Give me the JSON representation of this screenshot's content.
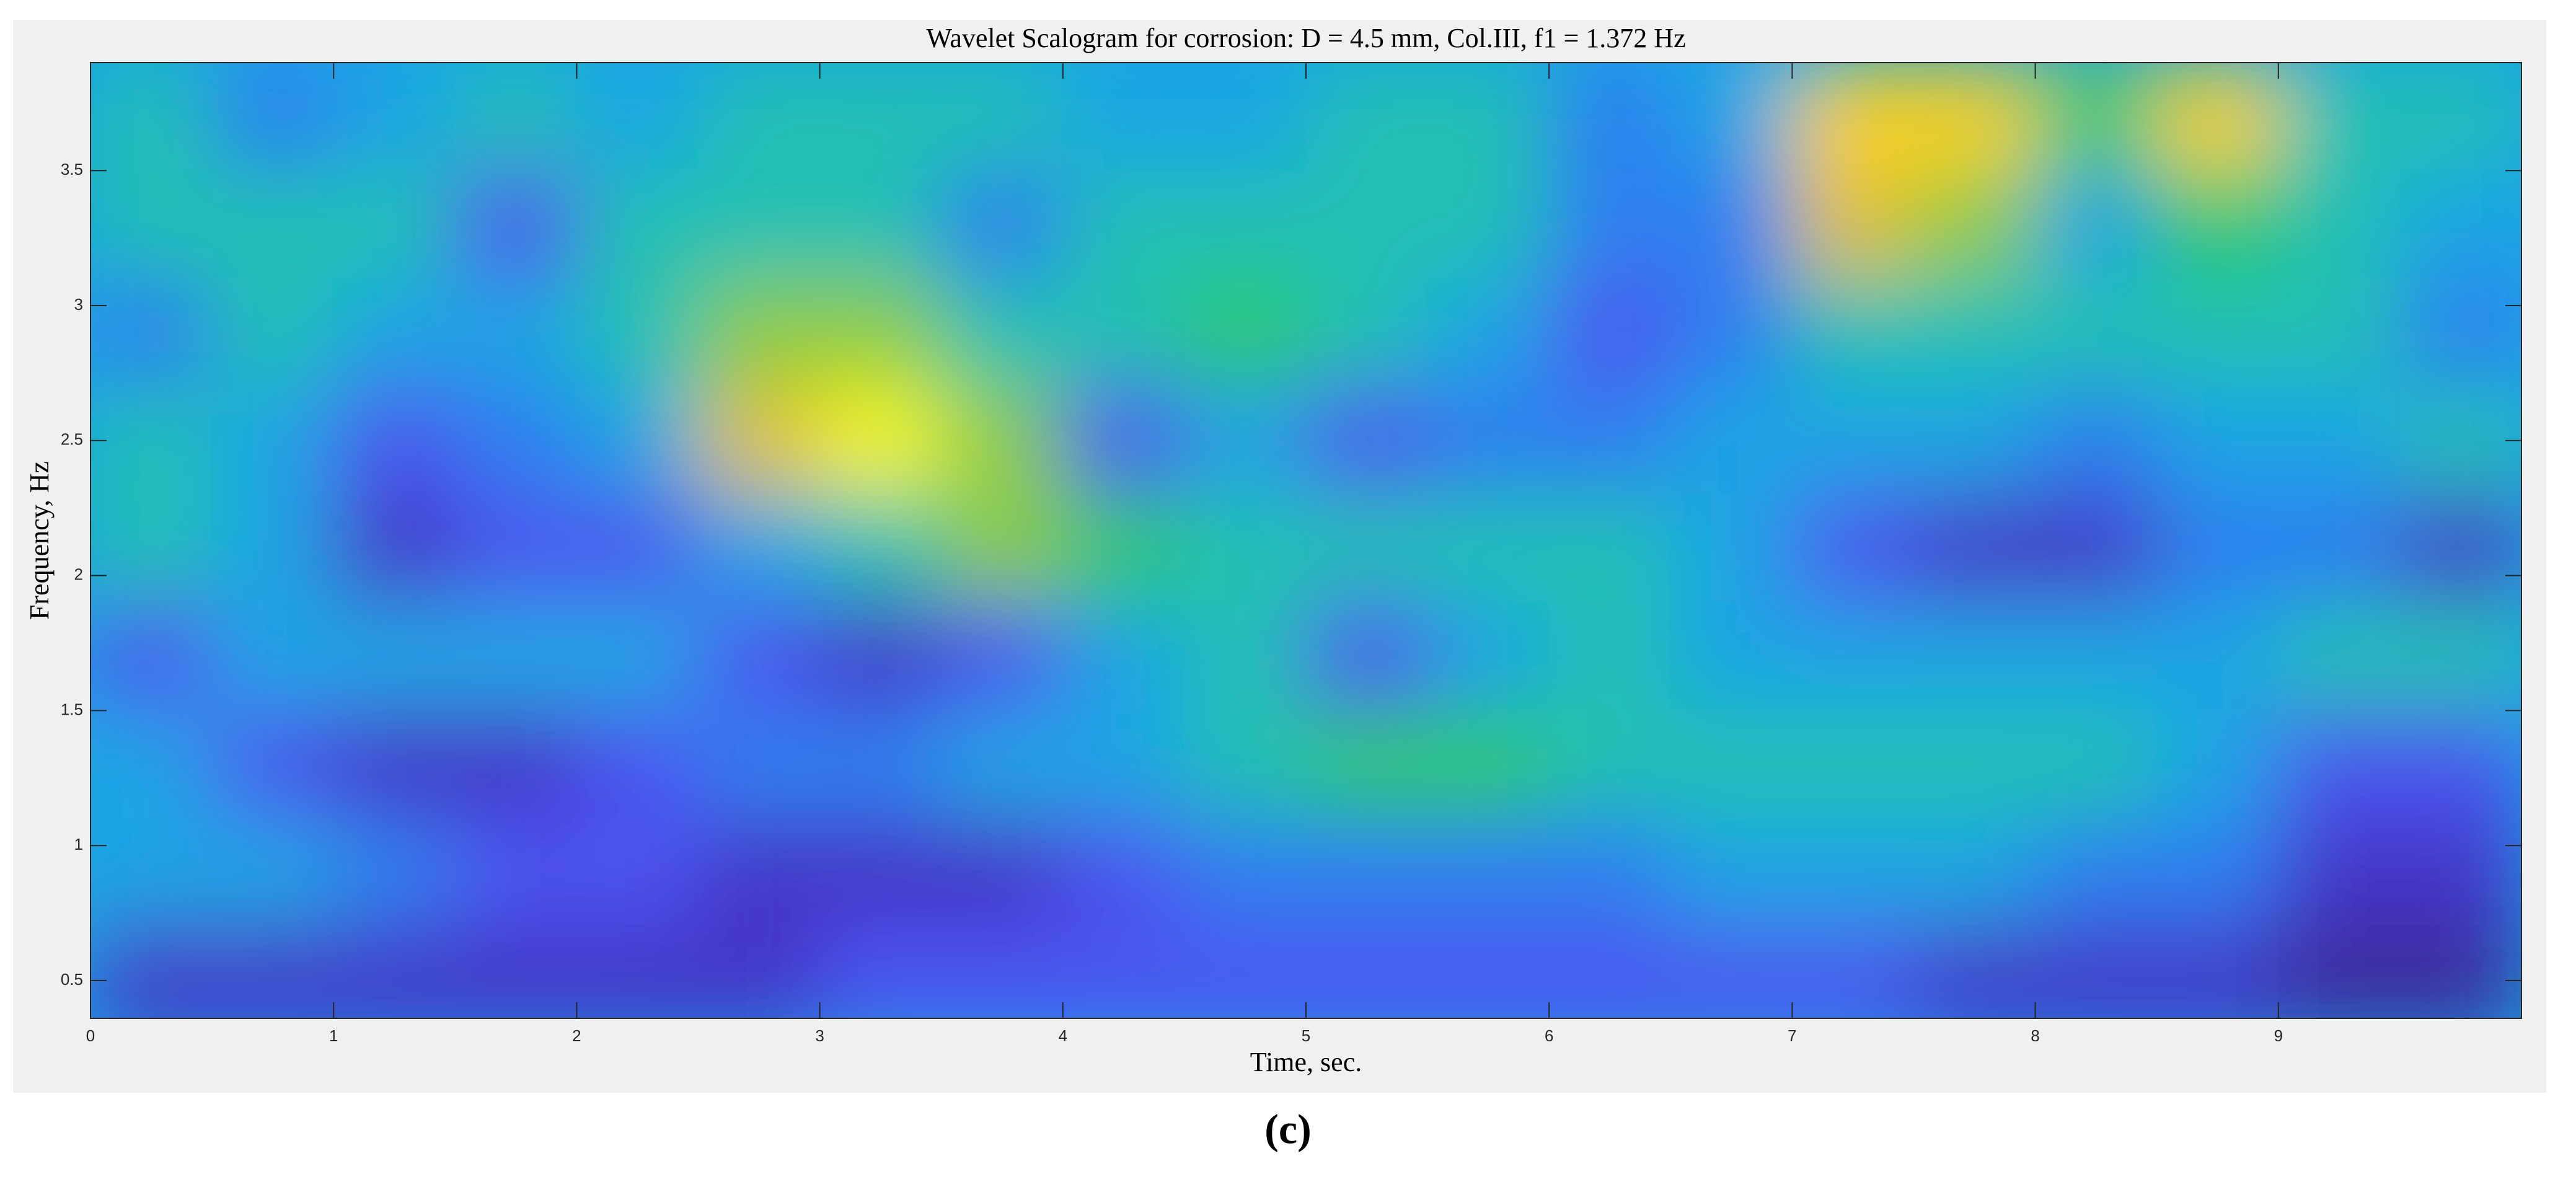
{
  "chart_data": {
    "type": "heatmap",
    "title": "Wavelet Scalogram for corrosion: D = 4.5 mm, Col.III, f1 = 1.372 Hz",
    "xlabel": "Time, sec.",
    "ylabel": "Frequency, Hz",
    "panel_label": "(c)",
    "x": [
      0.25,
      0.75,
      1.25,
      1.75,
      2.25,
      2.75,
      3.25,
      3.75,
      4.25,
      4.75,
      5.25,
      5.75,
      6.25,
      6.75,
      7.25,
      7.75,
      8.25,
      8.75,
      9.25,
      9.75
    ],
    "y": [
      3.7,
      3.3,
      2.9,
      2.5,
      2.1,
      1.7,
      1.3,
      0.9,
      0.5
    ],
    "z": [
      [
        5,
        3,
        4,
        5,
        4,
        5,
        5,
        5,
        4,
        4,
        5,
        5,
        3,
        4,
        9,
        9,
        6,
        9,
        5,
        5
      ],
      [
        5,
        5,
        5,
        2,
        5,
        5,
        5,
        3,
        5,
        5,
        5,
        5,
        3,
        3,
        8,
        7,
        4,
        6,
        5,
        4
      ],
      [
        3,
        5,
        4,
        4,
        5,
        7,
        7,
        5,
        5,
        6,
        5,
        4,
        2,
        3,
        5,
        5,
        5,
        5,
        5,
        3
      ],
      [
        5,
        4,
        2,
        3,
        4,
        8,
        10,
        7,
        2,
        4,
        2,
        3,
        3,
        4,
        4,
        4,
        3,
        4,
        4,
        5
      ],
      [
        5,
        4,
        1,
        2,
        2,
        4,
        5,
        7,
        6,
        5,
        5,
        5,
        5,
        4,
        2,
        1,
        1,
        3,
        3,
        1
      ],
      [
        2,
        4,
        4,
        4,
        4,
        2,
        1,
        2,
        4,
        5,
        2,
        4,
        5,
        4,
        4,
        4,
        4,
        4,
        5,
        5
      ],
      [
        4,
        2,
        1,
        1,
        2,
        3,
        3,
        4,
        4,
        5,
        6,
        6,
        5,
        5,
        5,
        5,
        5,
        4,
        2,
        2
      ],
      [
        4,
        4,
        3,
        2,
        2,
        1,
        1,
        1,
        2,
        3,
        3,
        3,
        3,
        4,
        4,
        4,
        3,
        3,
        1,
        1
      ],
      [
        1,
        1,
        1,
        1,
        1,
        1,
        2,
        2,
        2,
        2,
        2,
        2,
        2,
        2,
        2,
        1,
        1,
        1,
        0,
        0
      ]
    ],
    "zlim": [
      0,
      10
    ],
    "colormap": [
      "#3d2a9a",
      "#4436c8",
      "#4b55f0",
      "#2f7ff0",
      "#1aa4e4",
      "#20c0b4",
      "#2ec86a",
      "#8ccc40",
      "#e0c030",
      "#fcd020",
      "#f8f810"
    ],
    "xlim": [
      0,
      10
    ],
    "xticks": [
      0,
      1,
      2,
      3,
      4,
      5,
      6,
      7,
      8,
      9
    ],
    "ylim": [
      0.36,
      3.9
    ],
    "yticks": [
      0.5,
      1,
      1.5,
      2,
      2.5,
      3,
      3.5
    ]
  }
}
